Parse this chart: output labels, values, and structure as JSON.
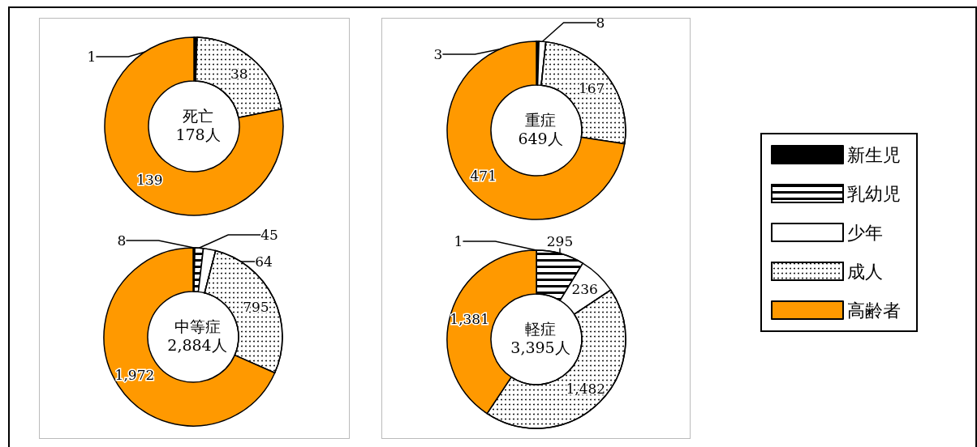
{
  "chart_data": {
    "type": "donut",
    "categories": [
      "新生児",
      "乳幼児",
      "少年",
      "成人",
      "高齢者"
    ],
    "colors": [
      "#000000",
      "#ffffff",
      "#ffffff",
      "#ffffff",
      "#ff9900"
    ],
    "legend": "right",
    "series": [
      {
        "name": "死亡",
        "values": [
          1,
          0,
          0,
          38,
          139
        ],
        "value_labels": [
          "1",
          null,
          null,
          "38",
          "139"
        ]
      },
      {
        "name": "重症",
        "values": [
          3,
          0,
          8,
          167,
          471
        ],
        "value_labels": [
          "3",
          null,
          "8",
          "167",
          "471"
        ]
      },
      {
        "name": "中等症",
        "values": [
          8,
          45,
          64,
          795,
          1972
        ],
        "value_labels": [
          "8",
          "45",
          "64",
          "795",
          "1,972"
        ]
      },
      {
        "name": "軽症",
        "values": [
          1,
          295,
          236,
          1482,
          1381
        ],
        "value_labels": [
          "1",
          "295",
          "236",
          "1,482",
          "1,381"
        ]
      }
    ],
    "annotations": [
      "178人",
      "649人",
      "2,884人",
      "3,395人"
    ]
  }
}
